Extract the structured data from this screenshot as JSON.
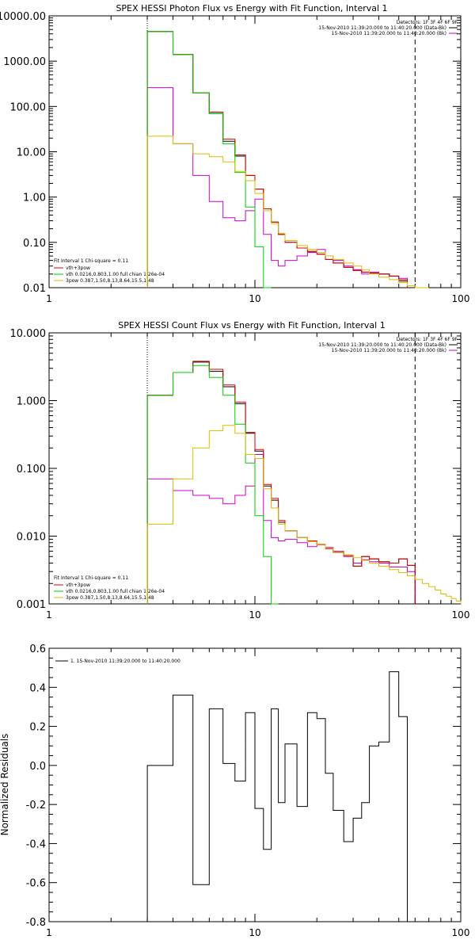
{
  "chart_data": [
    {
      "type": "line",
      "title": "SPEX HESSI Photon Flux vs Energy with Fit Function, Interval 1",
      "x_scale": "log",
      "y_scale": "log",
      "xlim": [
        1,
        100
      ],
      "ylim": [
        0.01,
        10000
      ],
      "x_ticks": [
        "1",
        "10",
        "100"
      ],
      "y_ticks": [
        "0.01",
        "0.10",
        "1.00",
        "10.00",
        "100.00",
        "1000.00",
        "10000.00"
      ],
      "detector_line": "Detectors: 1F 3F 4F 6F 9F",
      "date_lines": [
        "15-Nov-2010 11:39:20.000 to 11:40:20.000 (Data-Bk)",
        "15-Nov-2010 11:39:20.000 to 11:40:20.000 (Bk)"
      ],
      "fit_lines": [
        "Fit Interval 1   Chi-square = 0.11",
        "vth+3pow",
        "vth 0.0216,0.803,1.00  full chian 1.26e-04",
        "3pow 0.387,1.50,8.13,8.64,15.5,1.48"
      ],
      "vlines": [
        3,
        60
      ],
      "edges": [
        3,
        4,
        5,
        6,
        7,
        8,
        9,
        10,
        11,
        12,
        13,
        14,
        16,
        18,
        20,
        22,
        24,
        27,
        30,
        33,
        36,
        40,
        45,
        50,
        55,
        60,
        65,
        70
      ],
      "series": [
        {
          "key": "data",
          "color": "#000000",
          "values": [
            4500,
            1400,
            200,
            70,
            17,
            8,
            3,
            1.5,
            0.55,
            0.28,
            0.15,
            0.1,
            0.075,
            0.063,
            0.055,
            0.042,
            0.035,
            0.028,
            0.024,
            0.022,
            0.021,
            0.02,
            0.018,
            0.014
          ]
        },
        {
          "key": "bk",
          "color": "#cc00cc",
          "values": [
            260,
            15,
            3,
            0.8,
            0.35,
            0.3,
            0.5,
            0.9,
            0.15,
            0.04,
            0.03,
            0.04,
            0.05,
            0.06,
            0.07,
            0.05,
            0.04,
            0.03,
            0.025,
            0.02,
            0.022,
            0.02,
            0.018,
            0.016
          ]
        },
        {
          "key": "total",
          "color": "#dd0000",
          "values": [
            4500,
            1400,
            200,
            75,
            19,
            8.5,
            3,
            1.5,
            0.55,
            0.28,
            0.15,
            0.1,
            0.075,
            0.063,
            0.055,
            0.042,
            0.035,
            0.028,
            0.024,
            0.022,
            0.021,
            0.02,
            0.018,
            0.015
          ]
        },
        {
          "key": "vth",
          "color": "#00cc00",
          "values": [
            4500,
            1400,
            200,
            70,
            15,
            3.5,
            0.6,
            0.08,
            0.008
          ]
        },
        {
          "key": "3pow",
          "color": "#ddbb00",
          "values": [
            22,
            15,
            9,
            7.8,
            6,
            3.7,
            2.3,
            1.2,
            0.5,
            0.26,
            0.16,
            0.11,
            0.085,
            0.07,
            0.06,
            0.05,
            0.042,
            0.035,
            0.03,
            0.025,
            0.02,
            0.017,
            0.015,
            0.013,
            0.011,
            0.01,
            0.009
          ]
        }
      ]
    },
    {
      "type": "line",
      "title": "SPEX HESSI Count Flux vs Energy with Fit Function, Interval 1",
      "x_scale": "log",
      "y_scale": "log",
      "xlim": [
        1,
        100
      ],
      "ylim": [
        0.001,
        10
      ],
      "x_ticks": [
        "1",
        "10",
        "100"
      ],
      "y_ticks": [
        "0.001",
        "0.010",
        "0.100",
        "1.000",
        "10.000"
      ],
      "detector_line": "Detectors: 1F 3F 4F 6F 9F",
      "date_lines": [
        "15-Nov-2010 11:39:20.000 to 11:40:20.000 (Data-Bk)",
        "15-Nov-2010 11:39:20.000 to 11:40:20.000 (Bk)"
      ],
      "fit_lines": [
        "Fit Interval 1   Chi-square = 0.11",
        "vth+3pow",
        "vth 0.0216,0.803,1.00  full chian 1.26e-04",
        "3pow 0.387,1.50,8.13,8.64,15.5,1.48"
      ],
      "vlines": [
        3,
        60
      ],
      "edges": [
        3,
        4,
        5,
        6,
        7,
        8,
        9,
        10,
        11,
        12,
        13,
        14,
        16,
        18,
        20,
        22,
        24,
        27,
        30,
        33,
        36,
        40,
        45,
        50,
        55,
        60,
        65,
        70,
        75,
        80,
        85,
        90,
        95,
        100
      ],
      "series": [
        {
          "key": "data",
          "color": "#000000",
          "values": [
            1.2,
            2.6,
            3.7,
            2.7,
            1.6,
            0.9,
            0.33,
            0.18,
            0.055,
            0.034,
            0.016,
            0.012,
            0.0095,
            0.0085,
            0.0075,
            0.0065,
            0.0058,
            0.0052,
            0.0036,
            0.005,
            0.0046,
            0.0042,
            0.004,
            0.0046,
            0.0037
          ]
        },
        {
          "key": "bk",
          "color": "#cc00cc",
          "values": [
            0.07,
            0.047,
            0.04,
            0.036,
            0.03,
            0.04,
            0.055,
            0.16,
            0.017,
            0.0095,
            0.0085,
            0.009,
            0.008,
            0.007,
            0.0075,
            0.0068,
            0.006,
            0.005,
            0.004,
            0.0045,
            0.0042,
            0.004,
            0.0035,
            0.0035,
            0.003
          ]
        },
        {
          "key": "total",
          "color": "#dd0000",
          "values": [
            1.2,
            2.6,
            3.8,
            2.9,
            1.7,
            0.95,
            0.34,
            0.19,
            0.058,
            0.036,
            0.017,
            0.012,
            0.0095,
            0.0085,
            0.0075,
            0.0065,
            0.0058,
            0.0052,
            0.0036,
            0.005,
            0.0046,
            0.0042,
            0.004,
            0.0046,
            0.0037
          ]
        },
        {
          "key": "vth",
          "color": "#00cc00",
          "values": [
            1.2,
            2.6,
            3.3,
            2.2,
            1.2,
            0.45,
            0.12,
            0.02,
            0.005,
            0.001
          ]
        },
        {
          "key": "3pow",
          "color": "#ddbb00",
          "values": [
            0.015,
            0.07,
            0.2,
            0.36,
            0.43,
            0.33,
            0.16,
            0.14,
            0.05,
            0.026,
            0.015,
            0.012,
            0.0095,
            0.0083,
            0.0074,
            0.0066,
            0.0059,
            0.0053,
            0.0048,
            0.0044,
            0.004,
            0.0036,
            0.0032,
            0.0029,
            0.0026,
            0.0023,
            0.002,
            0.0018,
            0.0016,
            0.0014,
            0.0013,
            0.0012,
            0.0011
          ]
        }
      ]
    },
    {
      "type": "line",
      "title": "",
      "ylabel": "Normalized Residuals",
      "x_scale": "log",
      "y_scale": "linear",
      "xlim": [
        1,
        100
      ],
      "ylim": [
        -0.8,
        0.6
      ],
      "x_ticks": [
        "1",
        "10",
        "100"
      ],
      "y_ticks": [
        "0.6",
        "0.4",
        "0.2",
        "0.0",
        "-0.2",
        "-0.4",
        "-0.6",
        "-0.8"
      ],
      "legend": "1. 15-Nov-2010 11:39:20.000 to 11:40:20.000",
      "edges": [
        3,
        4,
        5,
        6,
        7,
        8,
        9,
        10,
        11,
        12,
        13,
        14,
        16,
        18,
        20,
        22,
        24,
        27,
        30,
        33,
        36,
        40,
        45,
        50,
        55,
        60
      ],
      "series": [
        {
          "key": "residual",
          "color": "#000000",
          "values": [
            0.0,
            0.36,
            -0.61,
            0.29,
            0.01,
            -0.08,
            0.27,
            -0.22,
            -0.43,
            0.29,
            -0.19,
            0.11,
            -0.21,
            0.27,
            0.24,
            -0.04,
            -0.23,
            -0.39,
            -0.27,
            -0.19,
            0.1,
            0.12,
            0.48,
            0.25
          ]
        }
      ]
    }
  ]
}
